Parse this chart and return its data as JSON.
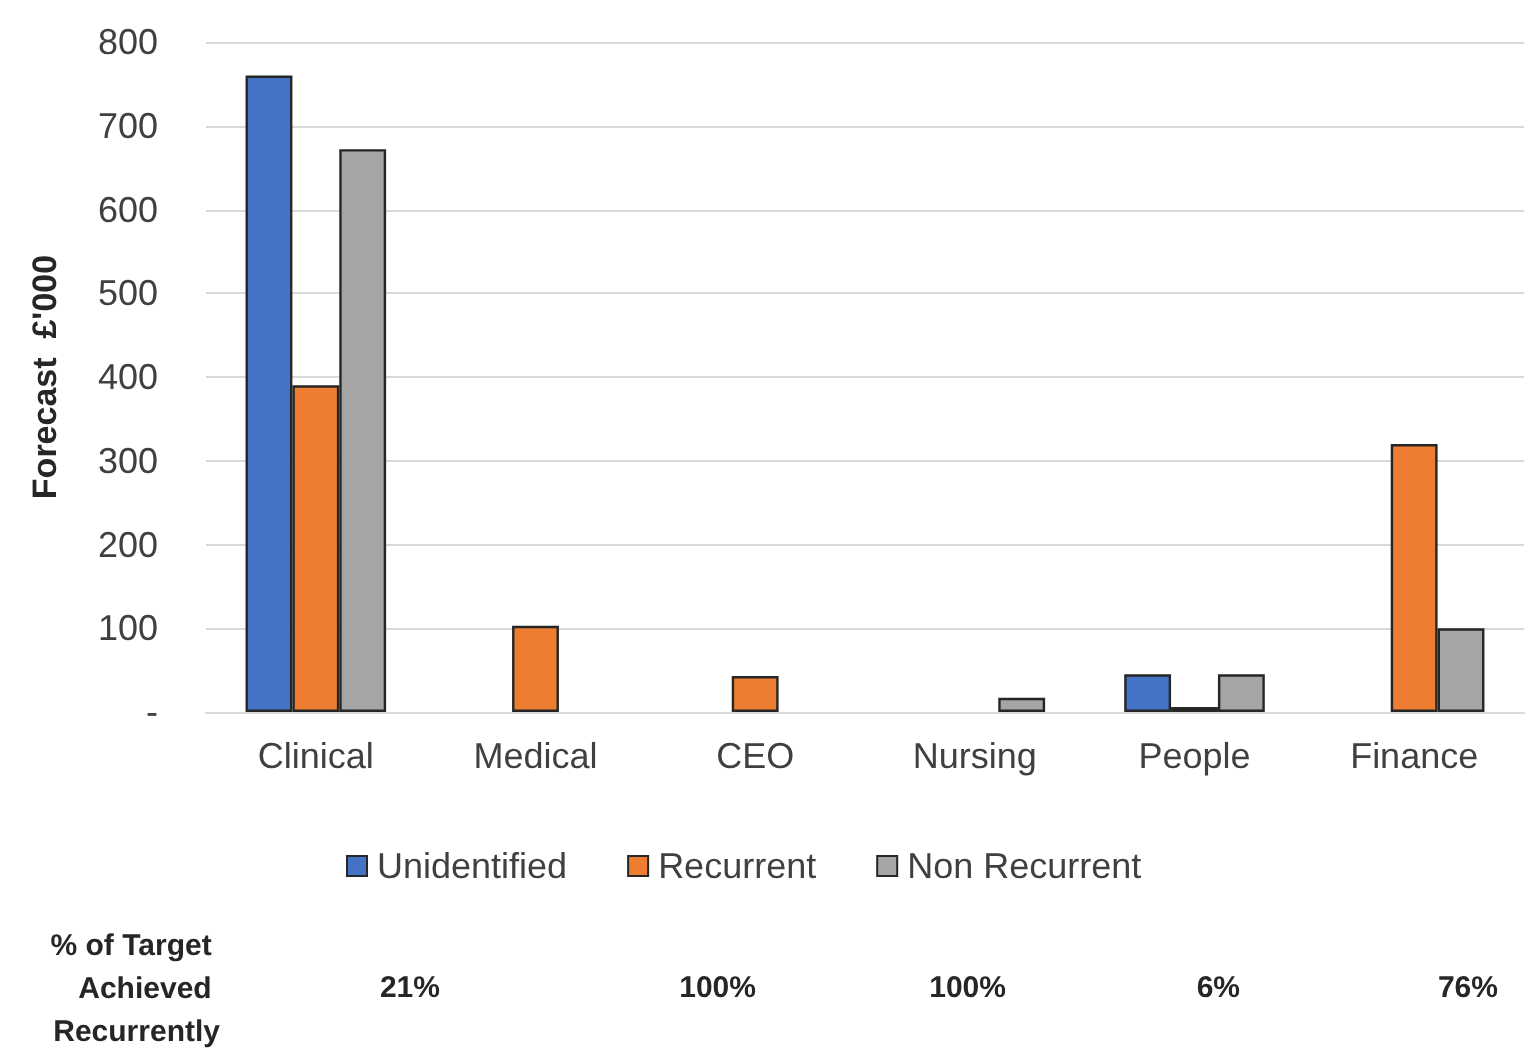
{
  "chart_data": {
    "type": "bar",
    "ylabel": "Forecast  £'000",
    "categories": [
      "Clinical",
      "Medical",
      "CEO",
      "Nursing",
      "People",
      "Finance"
    ],
    "series": [
      {
        "name": "Unidentified",
        "color": "#4472c4",
        "values": [
          760,
          null,
          null,
          null,
          45,
          null
        ]
      },
      {
        "name": "Recurrent",
        "color": "#ed7d31",
        "values": [
          390,
          103,
          43,
          null,
          6,
          320
        ]
      },
      {
        "name": "Non Recurrent",
        "color": "#a5a5a5",
        "values": [
          672,
          null,
          null,
          17,
          45,
          100
        ]
      }
    ],
    "ylim": [
      0,
      800
    ],
    "yticks": [
      {
        "value": 0,
        "label": "-"
      },
      100,
      200,
      300,
      400,
      500,
      600,
      700,
      800
    ],
    "grid": "y",
    "legend": "bottom",
    "annotations": [
      "% of Target Achieved Recurrently",
      "21%",
      "100%",
      "100%",
      "6%",
      "76%"
    ]
  }
}
